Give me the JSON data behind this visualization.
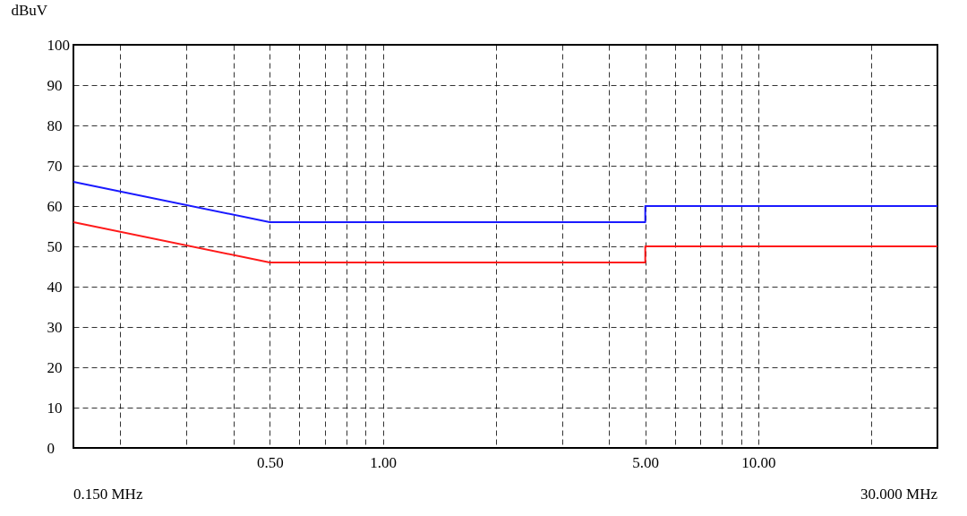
{
  "chart_data": {
    "type": "line",
    "ylabel": "dBuV",
    "xlim": [
      0.15,
      30
    ],
    "ylim": [
      0,
      100
    ],
    "xticks": [
      {
        "value": 0.2,
        "label": null
      },
      {
        "value": 0.3,
        "label": null
      },
      {
        "value": 0.4,
        "label": null
      },
      {
        "value": 0.5,
        "label": "0.50"
      },
      {
        "value": 0.6,
        "label": null
      },
      {
        "value": 0.7,
        "label": null
      },
      {
        "value": 0.8,
        "label": null
      },
      {
        "value": 0.9,
        "label": null
      },
      {
        "value": 1,
        "label": "1.00"
      },
      {
        "value": 2,
        "label": null
      },
      {
        "value": 3,
        "label": null
      },
      {
        "value": 4,
        "label": null
      },
      {
        "value": 5,
        "label": "5.00"
      },
      {
        "value": 6,
        "label": null
      },
      {
        "value": 7,
        "label": null
      },
      {
        "value": 8,
        "label": null
      },
      {
        "value": 9,
        "label": null
      },
      {
        "value": 10,
        "label": "10.00"
      },
      {
        "value": 20,
        "label": null
      }
    ],
    "yticks": [
      0,
      10,
      20,
      30,
      40,
      50,
      60,
      70,
      80,
      90,
      100
    ],
    "log": "x",
    "grid": true,
    "marker": "none",
    "line_style": "solid",
    "series": [
      {
        "color": "#1a1aff",
        "x": [
          0.15,
          0.5,
          5,
          5,
          30
        ],
        "values": [
          66,
          56,
          56,
          60,
          60
        ]
      },
      {
        "color": "#ff1a1a",
        "x": [
          0.15,
          0.5,
          5,
          5,
          30
        ],
        "values": [
          56,
          46,
          46,
          50,
          50
        ]
      }
    ],
    "annotations": [
      "0.150 MHz",
      "30.000 MHz"
    ]
  }
}
